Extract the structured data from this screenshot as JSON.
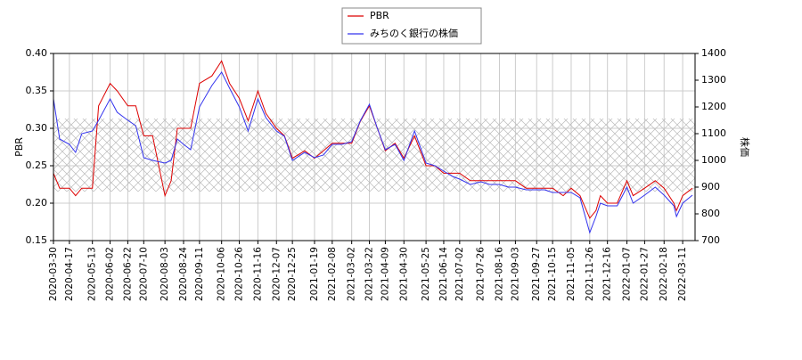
{
  "chart_data": {
    "type": "line",
    "x": [
      "2020-03-30",
      "2020-04-06",
      "2020-04-17",
      "2020-04-24",
      "2020-05-01",
      "2020-05-13",
      "2020-05-20",
      "2020-06-02",
      "2020-06-10",
      "2020-06-22",
      "2020-07-01",
      "2020-07-10",
      "2020-07-20",
      "2020-08-03",
      "2020-08-10",
      "2020-08-17",
      "2020-08-24",
      "2020-09-01",
      "2020-09-11",
      "2020-09-25",
      "2020-10-06",
      "2020-10-15",
      "2020-10-26",
      "2020-11-05",
      "2020-11-16",
      "2020-11-25",
      "2020-12-07",
      "2020-12-16",
      "2020-12-25",
      "2021-01-08",
      "2021-01-19",
      "2021-01-29",
      "2021-02-08",
      "2021-02-19",
      "2021-03-02",
      "2021-03-12",
      "2021-03-22",
      "2021-03-31",
      "2021-04-09",
      "2021-04-20",
      "2021-04-30",
      "2021-05-12",
      "2021-05-25",
      "2021-06-04",
      "2021-06-14",
      "2021-06-24",
      "2021-07-02",
      "2021-07-14",
      "2021-07-26",
      "2021-08-05",
      "2021-08-16",
      "2021-08-26",
      "2021-09-03",
      "2021-09-15",
      "2021-09-27",
      "2021-10-06",
      "2021-10-15",
      "2021-10-27",
      "2021-11-05",
      "2021-11-15",
      "2021-11-26",
      "2021-12-03",
      "2021-12-08",
      "2021-12-16",
      "2021-12-27",
      "2022-01-07",
      "2022-01-14",
      "2022-01-27",
      "2022-02-08",
      "2022-02-18",
      "2022-03-01",
      "2022-03-04",
      "2022-03-11",
      "2022-03-22"
    ],
    "series": [
      {
        "name": "PBR",
        "color": "#dd0000",
        "axis": "y",
        "values": [
          0.24,
          0.22,
          0.22,
          0.21,
          0.22,
          0.22,
          0.33,
          0.36,
          0.35,
          0.33,
          0.33,
          0.29,
          0.29,
          0.21,
          0.23,
          0.3,
          0.3,
          0.3,
          0.36,
          0.37,
          0.39,
          0.36,
          0.34,
          0.31,
          0.35,
          0.32,
          0.3,
          0.29,
          0.26,
          0.27,
          0.26,
          0.27,
          0.28,
          0.28,
          0.28,
          0.31,
          0.33,
          0.3,
          0.27,
          0.28,
          0.26,
          0.29,
          0.25,
          0.25,
          0.24,
          0.24,
          0.24,
          0.23,
          0.23,
          0.23,
          0.23,
          0.23,
          0.23,
          0.22,
          0.22,
          0.22,
          0.22,
          0.21,
          0.22,
          0.21,
          0.18,
          0.19,
          0.21,
          0.2,
          0.2,
          0.23,
          0.21,
          0.22,
          0.23,
          0.22,
          0.2,
          0.19,
          0.21,
          0.22
        ]
      },
      {
        "name": "みちのく銀行の株価",
        "color": "#3333ee",
        "axis": "y2",
        "values": [
          1230,
          1080,
          1060,
          1030,
          1100,
          1110,
          1150,
          1230,
          1180,
          1150,
          1130,
          1010,
          1000,
          990,
          1000,
          1080,
          1060,
          1040,
          1200,
          1280,
          1330,
          1270,
          1200,
          1110,
          1230,
          1160,
          1110,
          1090,
          1000,
          1030,
          1010,
          1020,
          1060,
          1060,
          1070,
          1150,
          1210,
          1120,
          1040,
          1060,
          1000,
          1110,
          990,
          980,
          960,
          940,
          930,
          910,
          920,
          910,
          910,
          900,
          900,
          890,
          890,
          890,
          880,
          880,
          880,
          860,
          730,
          790,
          840,
          830,
          830,
          900,
          840,
          870,
          900,
          870,
          830,
          790,
          840,
          870
        ]
      }
    ],
    "xlim": [
      "2020-03-30",
      "2022-03-25"
    ],
    "xticks": [
      "2020-03-30",
      "2020-04-17",
      "2020-05-13",
      "2020-06-02",
      "2020-06-22",
      "2020-07-10",
      "2020-08-03",
      "2020-08-24",
      "2020-09-11",
      "2020-10-06",
      "2020-10-26",
      "2020-11-16",
      "2020-12-07",
      "2020-12-25",
      "2021-01-19",
      "2021-02-08",
      "2021-03-02",
      "2021-03-22",
      "2021-04-09",
      "2021-04-30",
      "2021-05-25",
      "2021-06-14",
      "2021-07-02",
      "2021-07-26",
      "2021-08-16",
      "2021-09-03",
      "2021-09-27",
      "2021-10-15",
      "2021-11-05",
      "2021-11-26",
      "2021-12-16",
      "2022-01-07",
      "2022-01-27",
      "2022-02-18",
      "2022-03-11"
    ],
    "ylabel": "PBR",
    "ylim": [
      0.15,
      0.4
    ],
    "yticks": [
      {
        "value": 0.15,
        "label": "0.15"
      },
      {
        "value": 0.2,
        "label": "0.20"
      },
      {
        "value": 0.25,
        "label": "0.25"
      },
      {
        "value": 0.3,
        "label": "0.30"
      },
      {
        "value": 0.35,
        "label": "0.35"
      },
      {
        "value": 0.4,
        "label": "0.40"
      }
    ],
    "y2label": "株価",
    "y2lim": [
      700,
      1400
    ],
    "y2ticks": [
      700,
      800,
      900,
      1000,
      1100,
      1200,
      1300,
      1400
    ],
    "grid": true
  }
}
